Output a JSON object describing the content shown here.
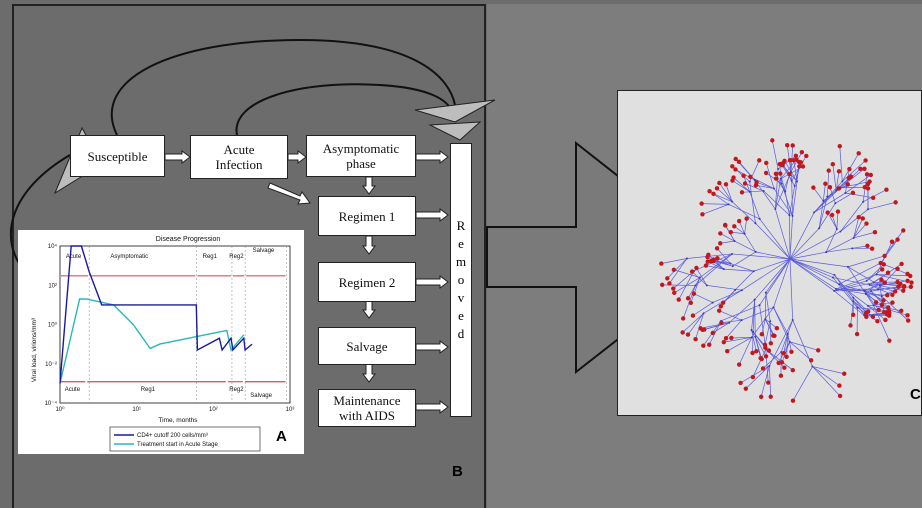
{
  "flow": {
    "susceptible": "Susceptible",
    "acute_infection": "Acute Infection",
    "asymptomatic_phase": "Asymptomatic phase",
    "regimen1": "Regimen 1",
    "regimen2": "Regimen 2",
    "salvage": "Salvage",
    "maintenance": "Maintenance with AIDS",
    "removed_letters": [
      "R",
      "e",
      "m",
      "o",
      "v",
      "e",
      "d"
    ]
  },
  "panel_labels": {
    "a": "A",
    "b": "B",
    "c": "C"
  },
  "chart": {
    "title": "Disease Progression",
    "xlabel": "Time, months",
    "ylabel": "Viral load, virions/mm³",
    "y_ticks": [
      "10⁴",
      "10²",
      "10⁰",
      "10⁻²",
      "10⁻⁴"
    ],
    "x_ticks": [
      "10⁰",
      "10¹",
      "10²",
      "10³"
    ],
    "phase_labels_top": [
      "Acute",
      "Asymptomatic",
      "Reg1",
      "Reg2",
      "Salvage"
    ],
    "phase_labels_bottom": [
      "Acute",
      "Reg1",
      "Reg2",
      "Salvage"
    ],
    "legend": [
      "CD4+ cutoff 200 cells/mm³",
      "Treatment start in Acute Stage"
    ],
    "colors": {
      "series1": "#1a1aa0",
      "series2": "#28b8b8",
      "phase": "#c00000"
    }
  },
  "chart_data": {
    "type": "line",
    "title": "Disease Progression",
    "xlabel": "Time, months",
    "ylabel": "Viral load, virions/mm³",
    "xscale": "log",
    "yscale": "log",
    "xlim": [
      1,
      1000
    ],
    "ylim": [
      0.0001,
      10000
    ],
    "series": [
      {
        "name": "CD4+ cutoff 200 cells/mm³",
        "x": [
          1,
          1.4,
          1.9,
          2.4,
          3.5,
          60,
          62,
          120,
          130,
          170,
          180,
          250,
          260,
          320
        ],
        "y": [
          0.001,
          10000,
          10000,
          500,
          10,
          10,
          0.05,
          0.2,
          0.05,
          0.2,
          0.05,
          0.2,
          0.05,
          0.1
        ]
      },
      {
        "name": "Treatment start in Acute Stage",
        "x": [
          1,
          1.8,
          2.2,
          5,
          9,
          15,
          20,
          150,
          170,
          250
        ],
        "y": [
          0.001,
          20,
          20,
          10,
          1,
          0.06,
          0.1,
          0.5,
          0.05,
          0.3
        ]
      }
    ]
  }
}
